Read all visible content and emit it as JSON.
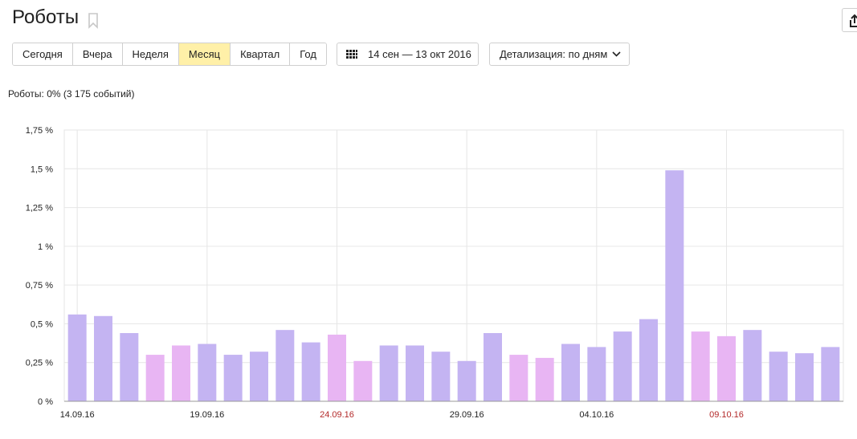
{
  "header": {
    "title": "Роботы"
  },
  "toolbar": {
    "periods": [
      "Сегодня",
      "Вчера",
      "Неделя",
      "Месяц",
      "Квартал",
      "Год"
    ],
    "active_period": "Месяц",
    "date_range": "14 сен — 13 окт 2016",
    "detail": "Детализация: по дням"
  },
  "summary": "Роботы: 0% (3 175 событий)",
  "colors": {
    "weekday_bar": "#c4b4f2",
    "weekend_bar": "#e8b5f3",
    "weekend_label": "#b32a2a",
    "grid": "#e6e6e6",
    "active_period_bg": "#fff0a8"
  },
  "chart_data": {
    "type": "bar",
    "ylim": [
      0,
      1.75
    ],
    "y_ticks": [
      0,
      0.25,
      0.5,
      0.75,
      1,
      1.25,
      1.5,
      1.75
    ],
    "y_tick_labels": [
      "0 %",
      "0,25 %",
      "0,5 %",
      "0,75 %",
      "1 %",
      "1,25 %",
      "1,5 %",
      "1,75 %"
    ],
    "x_tick_labels": [
      {
        "label": "14.09.16",
        "index": 0,
        "weekend": false
      },
      {
        "label": "19.09.16",
        "index": 5,
        "weekend": false
      },
      {
        "label": "24.09.16",
        "index": 10,
        "weekend": true
      },
      {
        "label": "29.09.16",
        "index": 15,
        "weekend": false
      },
      {
        "label": "04.10.16",
        "index": 20,
        "weekend": false
      },
      {
        "label": "09.10.16",
        "index": 25,
        "weekend": true
      }
    ],
    "categories": [
      "14.09.16",
      "15.09.16",
      "16.09.16",
      "17.09.16",
      "18.09.16",
      "19.09.16",
      "20.09.16",
      "21.09.16",
      "22.09.16",
      "23.09.16",
      "24.09.16",
      "25.09.16",
      "26.09.16",
      "27.09.16",
      "28.09.16",
      "29.09.16",
      "30.09.16",
      "01.10.16",
      "02.10.16",
      "03.10.16",
      "04.10.16",
      "05.10.16",
      "06.10.16",
      "07.10.16",
      "08.10.16",
      "09.10.16",
      "10.10.16",
      "11.10.16",
      "12.10.16",
      "13.10.16"
    ],
    "values": [
      0.56,
      0.55,
      0.44,
      0.3,
      0.36,
      0.37,
      0.3,
      0.32,
      0.46,
      0.38,
      0.43,
      0.26,
      0.36,
      0.36,
      0.32,
      0.26,
      0.44,
      0.3,
      0.28,
      0.37,
      0.35,
      0.45,
      0.53,
      1.49,
      0.45,
      0.42,
      0.46,
      0.32,
      0.31,
      0.35
    ],
    "weekend": [
      false,
      false,
      false,
      true,
      true,
      false,
      false,
      false,
      false,
      false,
      true,
      true,
      false,
      false,
      false,
      false,
      false,
      true,
      true,
      false,
      false,
      false,
      false,
      false,
      true,
      true,
      false,
      false,
      false,
      false
    ],
    "grid": true
  }
}
